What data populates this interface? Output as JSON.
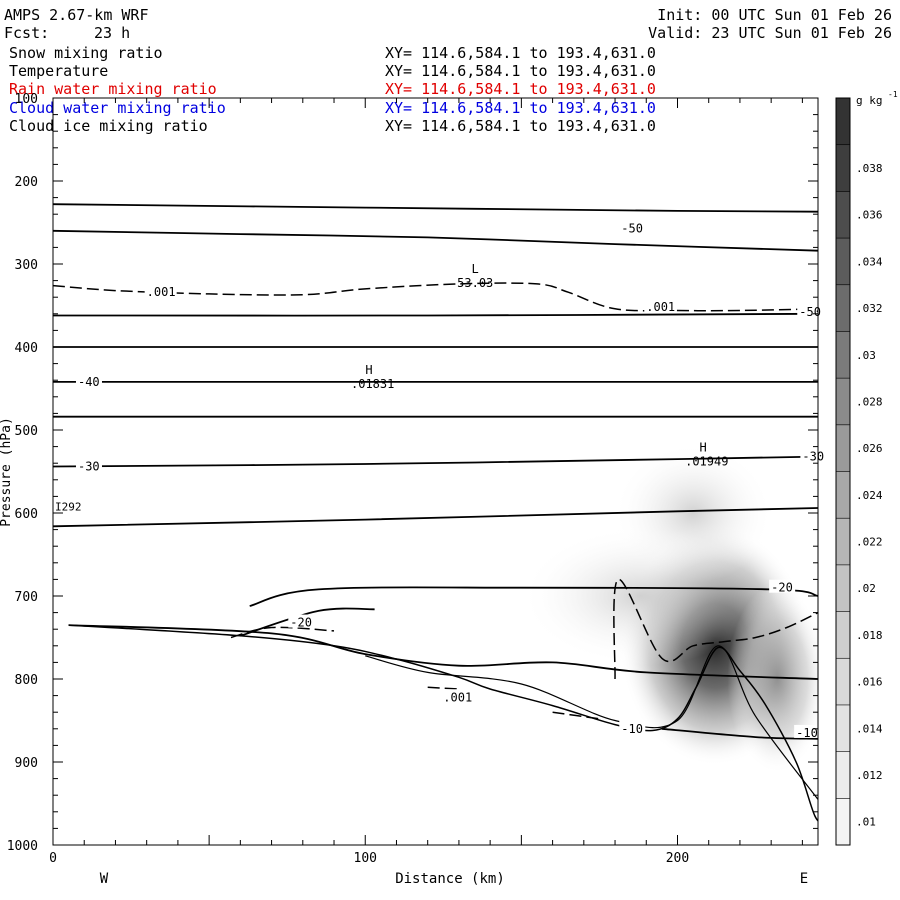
{
  "header": {
    "model": "AMPS 2.67-km WRF",
    "init": "Init: 00 UTC Sun 01 Feb 26",
    "fcst_label": "Fcst:",
    "fcst_value": "23 h",
    "valid": "Valid: 23 UTC Sun 01 Feb 26"
  },
  "fields": [
    {
      "name": "Snow mixing ratio",
      "xy": "XY= 114.6,584.1 to 193.4,631.0",
      "color": "#000000"
    },
    {
      "name": "Temperature",
      "xy": "XY= 114.6,584.1 to 193.4,631.0",
      "color": "#000000"
    },
    {
      "name": "Rain water mixing ratio",
      "xy": "XY= 114.6,584.1 to 193.4,631.0",
      "color": "#e00000"
    },
    {
      "name": "Cloud water mixing ratio",
      "xy": "XY= 114.6,584.1 to 193.4,631.0",
      "color": "#0000e0"
    },
    {
      "name": "Cloud ice mixing ratio",
      "xy": "XY= 114.6,584.1 to 193.4,631.0",
      "color": "#000000"
    }
  ],
  "chart_data": {
    "type": "cross-section contour",
    "xlabel": "Distance (km)",
    "ylabel": "Pressure (hPa)",
    "xlim": [
      0,
      245
    ],
    "ylim": [
      1000,
      100
    ],
    "x_ticks": [
      0,
      100,
      200
    ],
    "y_ticks": [
      100,
      200,
      300,
      400,
      500,
      600,
      700,
      800,
      900,
      1000
    ],
    "left_end_label": "W",
    "right_end_label": "E",
    "colorbar": {
      "unit_label": "g kg",
      "unit_exponent": "-1",
      "levels": [
        ".01",
        ".012",
        ".014",
        ".016",
        ".018",
        ".02",
        ".022",
        ".024",
        ".026",
        ".028",
        ".03",
        ".032",
        ".034",
        ".036",
        ".038"
      ],
      "colors": [
        "#f4f4f4",
        "#ececec",
        "#e3e3e3",
        "#d9d9d9",
        "#cecece",
        "#c3c3c3",
        "#b6b6b6",
        "#a8a8a8",
        "#9a9a9a",
        "#8b8b8b",
        "#7b7b7b",
        "#6c6c6c",
        "#5c5c5c",
        "#4d4d4d",
        "#3e3e3e",
        "#333333"
      ]
    },
    "shaded_maxima": [
      {
        "x": 212,
        "p": 760,
        "value": 0.032
      },
      {
        "x": 232,
        "p": 800,
        "value": 0.024
      },
      {
        "x": 205,
        "p": 600,
        "value": 0.018
      }
    ],
    "isotherms": [
      {
        "points": [
          [
            0,
            228
          ],
          [
            100,
            232
          ],
          [
            200,
            236
          ],
          [
            245,
            237
          ]
        ]
      },
      {
        "points": [
          [
            0,
            260
          ],
          [
            60,
            264
          ],
          [
            120,
            268
          ],
          [
            180,
            276
          ],
          [
            245,
            284
          ]
        ]
      },
      {
        "points": [
          [
            0,
            362
          ],
          [
            120,
            362
          ],
          [
            245,
            360
          ]
        ]
      },
      {
        "points": [
          [
            0,
            400
          ],
          [
            245,
            400
          ]
        ]
      },
      {
        "points": [
          [
            0,
            442
          ],
          [
            245,
            442
          ]
        ]
      },
      {
        "points": [
          [
            0,
            484
          ],
          [
            245,
            484
          ]
        ]
      },
      {
        "points": [
          [
            0,
            544
          ],
          [
            100,
            541
          ],
          [
            200,
            535
          ],
          [
            245,
            532
          ]
        ]
      },
      {
        "points": [
          [
            0,
            616
          ],
          [
            100,
            608
          ],
          [
            200,
            598
          ],
          [
            245,
            594
          ]
        ]
      },
      {
        "points": [
          [
            5,
            735
          ],
          [
            70,
            745
          ],
          [
            100,
            770
          ],
          [
            130,
            784
          ],
          [
            160,
            780
          ],
          [
            190,
            792
          ],
          [
            245,
            800
          ]
        ]
      },
      {
        "points": [
          [
            60,
            748
          ],
          [
            85,
            718
          ],
          [
            103,
            716
          ]
        ]
      },
      {
        "points": [
          [
            63,
            712
          ],
          [
            85,
            692
          ],
          [
            150,
            690
          ],
          [
            230,
            692
          ],
          [
            245,
            700
          ]
        ]
      },
      {
        "points": [
          [
            195,
            860
          ],
          [
            225,
            870
          ],
          [
            245,
            872
          ]
        ]
      }
    ],
    "isotherm_labels": [
      {
        "text": "-50",
        "x": 182,
        "p": 257
      },
      {
        "text": "-50",
        "x": 239,
        "p": 358
      },
      {
        "text": "-40",
        "x": 8,
        "p": 442
      },
      {
        "text": "-30",
        "x": 8,
        "p": 544
      },
      {
        "text": "-30",
        "x": 240,
        "p": 532
      },
      {
        "text": "-20",
        "x": 76,
        "p": 732
      },
      {
        "text": "-20",
        "x": 230,
        "p": 690
      },
      {
        "text": "-10",
        "x": 182,
        "p": 860
      },
      {
        "text": "-10",
        "x": 238,
        "p": 865
      }
    ],
    "snow_contours": [
      {
        "points": [
          [
            0,
            326
          ],
          [
            20,
            332
          ],
          [
            50,
            336
          ],
          [
            80,
            337
          ],
          [
            100,
            330
          ],
          [
            130,
            324
          ],
          [
            155,
            324
          ],
          [
            165,
            334
          ],
          [
            180,
            354
          ],
          [
            200,
            356
          ],
          [
            220,
            356
          ],
          [
            245,
            354
          ]
        ]
      },
      {
        "points": [
          [
            57,
            750
          ],
          [
            70,
            738
          ],
          [
            90,
            742
          ]
        ]
      },
      {
        "points": [
          [
            120,
            810
          ],
          [
            130,
            812
          ]
        ]
      },
      {
        "points": [
          [
            160,
            840
          ],
          [
            175,
            848
          ]
        ]
      },
      {
        "points": [
          [
            180,
            800
          ],
          [
            181,
            680
          ],
          [
            195,
            775
          ],
          [
            205,
            760
          ],
          [
            215,
            755
          ],
          [
            225,
            750
          ],
          [
            235,
            738
          ],
          [
            245,
            720
          ]
        ]
      }
    ],
    "snow_labels": [
      {
        "text": ".001",
        "x": 30,
        "p": 334
      },
      {
        "text": ".001",
        "x": 190,
        "p": 352
      },
      {
        "text": ".001",
        "x": 125,
        "p": 822
      }
    ],
    "terrain_outline": {
      "points": [
        [
          5,
          735
        ],
        [
          60,
          748
        ],
        [
          90,
          760
        ],
        [
          110,
          776
        ],
        [
          130,
          798
        ],
        [
          140,
          812
        ],
        [
          160,
          832
        ],
        [
          180,
          855
        ],
        [
          192,
          862
        ],
        [
          200,
          848
        ],
        [
          206,
          810
        ],
        [
          213,
          762
        ],
        [
          220,
          790
        ],
        [
          228,
          830
        ],
        [
          238,
          900
        ],
        [
          244,
          965
        ],
        [
          247,
          972
        ]
      ]
    },
    "terrain_boundary": {
      "points": [
        [
          100,
          772
        ],
        [
          120,
          792
        ],
        [
          150,
          806
        ],
        [
          180,
          850
        ],
        [
          200,
          850
        ],
        [
          213,
          760
        ],
        [
          225,
          845
        ],
        [
          245,
          945
        ]
      ]
    },
    "extrema": [
      {
        "marker": "L",
        "value": "53.03",
        "x": 132,
        "p": 318
      },
      {
        "marker": "H",
        "value": ".01831",
        "x": 98,
        "p": 440
      },
      {
        "marker": "H",
        "value": ".01949",
        "x": 205,
        "p": 533
      }
    ],
    "side_label": "I292",
    "side_label_p": 592
  }
}
